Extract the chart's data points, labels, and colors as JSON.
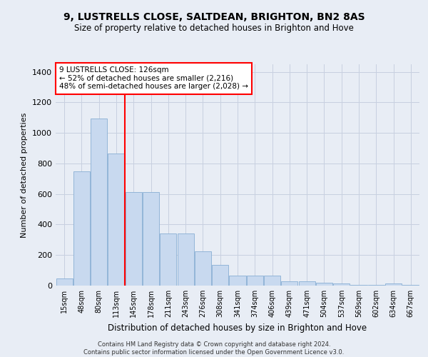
{
  "title": "9, LUSTRELLS CLOSE, SALTDEAN, BRIGHTON, BN2 8AS",
  "subtitle": "Size of property relative to detached houses in Brighton and Hove",
  "xlabel": "Distribution of detached houses by size in Brighton and Hove",
  "ylabel": "Number of detached properties",
  "footer1": "Contains HM Land Registry data © Crown copyright and database right 2024.",
  "footer2": "Contains public sector information licensed under the Open Government Licence v3.0.",
  "categories": [
    "15sqm",
    "48sqm",
    "80sqm",
    "113sqm",
    "145sqm",
    "178sqm",
    "211sqm",
    "243sqm",
    "276sqm",
    "308sqm",
    "341sqm",
    "374sqm",
    "406sqm",
    "439sqm",
    "471sqm",
    "504sqm",
    "537sqm",
    "569sqm",
    "602sqm",
    "634sqm",
    "667sqm"
  ],
  "values": [
    45,
    750,
    1095,
    865,
    615,
    615,
    340,
    340,
    225,
    135,
    65,
    65,
    65,
    30,
    30,
    20,
    15,
    5,
    5,
    15,
    5
  ],
  "bar_color": "#c8d9ef",
  "bar_edge_color": "#88aed4",
  "vline_x_index": 3.5,
  "vline_color": "red",
  "annotation_title": "9 LUSTRELLS CLOSE: 126sqm",
  "annotation_line2": "← 52% of detached houses are smaller (2,216)",
  "annotation_line3": "48% of semi-detached houses are larger (2,028) →",
  "annotation_box_color": "white",
  "annotation_border_color": "red",
  "ylim": [
    0,
    1450
  ],
  "yticks": [
    0,
    200,
    400,
    600,
    800,
    1000,
    1200,
    1400
  ],
  "grid_color": "#c8d0e0",
  "bg_color": "#e8edf5"
}
